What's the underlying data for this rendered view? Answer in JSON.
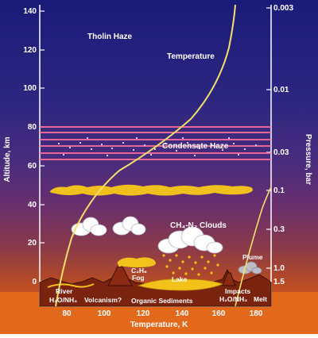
{
  "axes": {
    "y_left_label": "Altitude, km",
    "y_right_label": "Pressure, bar",
    "x_label": "Temperature, K",
    "y_left_ticks": [
      "140",
      "120",
      "100",
      "80",
      "60",
      "40",
      "20",
      "0"
    ],
    "y_right_ticks": [
      "0.003",
      "0.01",
      "0.03",
      "0.1",
      "0.3",
      "1.0",
      "1.5"
    ],
    "x_ticks": [
      "80",
      "100",
      "120",
      "140",
      "160",
      "180"
    ]
  },
  "labels": {
    "tholin_haze": "Tholin Haze",
    "temperature": "Temperature",
    "condensate_haze": "Condensate Haze",
    "clouds": "CH₄-N₂ Clouds",
    "c2h6": "C₂H₆",
    "fog": "Fog",
    "lake": "Lake",
    "plume": "Plume",
    "river": "River",
    "h2o_nh3_left": "H₂O/NH₃",
    "volcanism": "Volcanism?",
    "organic_sediments": "Organic Sediments",
    "impacts": "Impacts",
    "h2o_nh3_right": "H₂O/NH₃",
    "melt": "Melt"
  },
  "colors": {
    "sky_top": "#1c1d7a",
    "sky_mid": "#5a2d7a",
    "sky_low": "#b04828",
    "ground": "#e0661c",
    "temperature_curve": "#f2e06a",
    "haze_lines": "#ff6fa0",
    "clouds_yellow": "#f2c21a"
  }
}
